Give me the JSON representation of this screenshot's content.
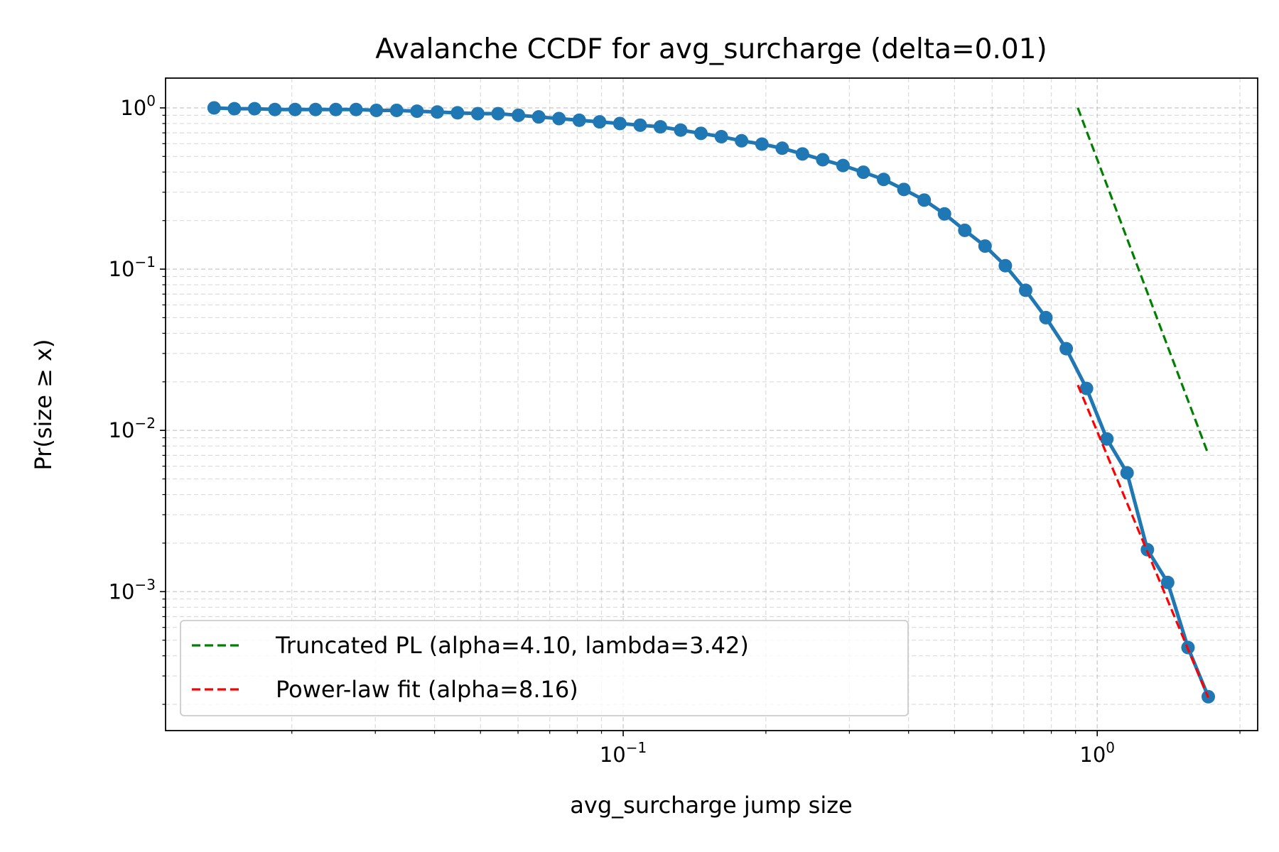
{
  "chart_data": {
    "type": "line",
    "title": "Avalanche CCDF for avg_surcharge (delta=0.01)",
    "xlabel": "avg_surcharge jump size",
    "ylabel": "Pr(size ≥ x)",
    "xscale": "log",
    "yscale": "log",
    "grid": true,
    "legend": "lower left",
    "xlim": [
      0.01083,
      2.18
    ],
    "ylim": [
      0.0001375,
      1.53
    ],
    "xticks": [
      {
        "value": 0.1,
        "label": "10",
        "exponent": "−1"
      },
      {
        "value": 1,
        "label": "10",
        "exponent": "0"
      }
    ],
    "yticks": [
      {
        "value": 0.001,
        "label": "10",
        "exponent": "−3"
      },
      {
        "value": 0.01,
        "label": "10",
        "exponent": "−2"
      },
      {
        "value": 0.1,
        "label": "10",
        "exponent": "−1"
      },
      {
        "value": 1,
        "label": "10",
        "exponent": "0"
      }
    ],
    "xminorticks": [
      0.02,
      0.03,
      0.04,
      0.05,
      0.06,
      0.07,
      0.08,
      0.09,
      0.2,
      0.3,
      0.4,
      0.5,
      0.6,
      0.7,
      0.8,
      0.9,
      2
    ],
    "yminorticks": [
      0.0002,
      0.0003,
      0.0004,
      0.0005,
      0.0006,
      0.0007,
      0.0008,
      0.0009,
      0.002,
      0.003,
      0.004,
      0.005,
      0.006,
      0.007,
      0.008,
      0.009,
      0.02,
      0.03,
      0.04,
      0.05,
      0.06,
      0.07,
      0.08,
      0.09,
      0.2,
      0.3,
      0.4,
      0.5,
      0.6,
      0.7,
      0.8,
      0.9
    ],
    "series": [
      {
        "color": "#1f77b4",
        "marker": true,
        "linestyle": "solid",
        "x": [
          0.01371,
          0.01513,
          0.01669,
          0.01842,
          0.02032,
          0.02244,
          0.02476,
          0.02732,
          0.03015,
          0.03327,
          0.03673,
          0.04053,
          0.04472,
          0.04935,
          0.05446,
          0.06012,
          0.06634,
          0.0732,
          0.08078,
          0.08917,
          0.0984,
          0.1086,
          0.1198,
          0.1322,
          0.1459,
          0.1611,
          0.1777,
          0.1962,
          0.2165,
          0.2389,
          0.2636,
          0.2909,
          0.3211,
          0.3543,
          0.391,
          0.4315,
          0.4762,
          0.5255,
          0.5799,
          0.64,
          0.7063,
          0.7794,
          0.8603,
          0.9493,
          1.048,
          1.156,
          1.276,
          1.408,
          1.554,
          1.715
        ],
        "values": [
          1.0,
          0.988,
          0.988,
          0.977,
          0.977,
          0.977,
          0.977,
          0.977,
          0.965,
          0.965,
          0.954,
          0.943,
          0.932,
          0.921,
          0.921,
          0.9,
          0.879,
          0.858,
          0.838,
          0.819,
          0.8,
          0.781,
          0.763,
          0.728,
          0.695,
          0.663,
          0.625,
          0.596,
          0.562,
          0.518,
          0.477,
          0.439,
          0.399,
          0.36,
          0.312,
          0.268,
          0.22,
          0.174,
          0.139,
          0.105,
          0.0739,
          0.05,
          0.0321,
          0.0182,
          0.00885,
          0.00545,
          0.00182,
          0.00114,
          0.00045,
          0.000223
        ]
      },
      {
        "name": "Truncated PL (alpha=4.10, lambda=3.42)",
        "color": "#008000",
        "linestyle": "dashed",
        "x": [
          0.91,
          1.715
        ],
        "values": [
          1.0,
          0.00711
        ]
      },
      {
        "name": "Power-law fit (alpha=8.16)",
        "color": "#ff0000",
        "linestyle": "dashed",
        "x": [
          0.91,
          1.715
        ],
        "values": [
          0.0191,
          0.00022
        ]
      }
    ]
  }
}
